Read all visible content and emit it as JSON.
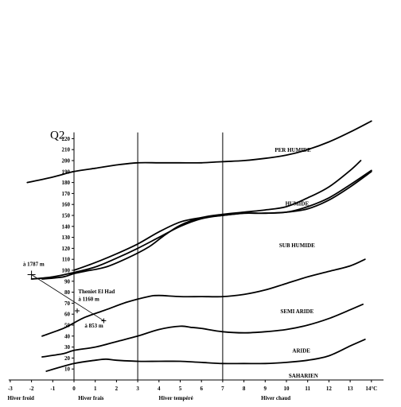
{
  "chart_data": {
    "type": "line",
    "ylabel": "Q2",
    "xlim": [
      -3,
      14
    ],
    "ylim": [
      0,
      230
    ],
    "x_ticks": [
      "-3",
      "-2",
      "-1",
      "0",
      "1",
      "2",
      "3",
      "4",
      "5",
      "6",
      "7",
      "8",
      "9",
      "10",
      "11",
      "12",
      "13",
      "14°C"
    ],
    "y_ticks": [
      10,
      20,
      30,
      40,
      50,
      60,
      70,
      80,
      90,
      100,
      110,
      120,
      130,
      140,
      150,
      160,
      170,
      180,
      190,
      200,
      210,
      220
    ],
    "vertical_lines": [
      0,
      3,
      7
    ],
    "seasons": [
      {
        "label": "Hiver froid",
        "x": -2.5
      },
      {
        "label": "Hiver frais",
        "x": 0.8
      },
      {
        "label": "Hiver tempéré",
        "x": 4.8
      },
      {
        "label": "Hiver chaud",
        "x": 9.5
      }
    ],
    "zones": [
      {
        "label": "PER HUMIDE",
        "x": 10.3,
        "y": 208
      },
      {
        "label": "HUMIDE",
        "x": 10.5,
        "y": 159
      },
      {
        "label": "SUB HUMIDE",
        "x": 10.5,
        "y": 121
      },
      {
        "label": "SEMI ARIDE",
        "x": 10.5,
        "y": 61
      },
      {
        "label": "ARIDE",
        "x": 10.7,
        "y": 25
      },
      {
        "label": "SAHARIEN",
        "x": 10.8,
        "y": 2
      }
    ],
    "series": [
      {
        "x": [
          -2.2,
          -1,
          0,
          1,
          2,
          3,
          4,
          5,
          6,
          7,
          8,
          9,
          10,
          11,
          12,
          13,
          14
        ],
        "y": [
          180,
          185,
          190,
          193,
          196,
          198,
          198,
          198,
          198,
          199,
          200,
          202,
          205,
          210,
          217,
          226,
          236
        ]
      },
      {
        "x": [
          0,
          1,
          2,
          3,
          4,
          5,
          6,
          7,
          8,
          9,
          10,
          11,
          12,
          13,
          14
        ],
        "y": [
          100,
          107,
          115,
          124,
          135,
          144,
          148,
          150,
          152,
          152,
          153,
          156,
          164,
          176,
          190
        ]
      },
      {
        "x": [
          -2,
          -1,
          0,
          1,
          2,
          3,
          4,
          5,
          6,
          7,
          8,
          9,
          10,
          11,
          12,
          13,
          14
        ],
        "y": [
          92,
          94,
          98,
          103,
          111,
          120,
          130,
          140,
          147,
          150,
          152,
          152,
          153,
          158,
          166,
          178,
          191
        ]
      },
      {
        "x": [
          -1.5,
          -0.5,
          0,
          0.5,
          1.5,
          2.5,
          3.5,
          4.2,
          5,
          6,
          7,
          8,
          9,
          10,
          11,
          12,
          13,
          13.5
        ],
        "y": [
          92,
          94,
          97,
          99,
          103,
          111,
          121,
          131,
          141,
          148,
          151,
          153,
          155,
          158,
          166,
          176,
          191,
          200
        ]
      },
      {
        "x": [
          -1.5,
          -0.5,
          0,
          0.5,
          1.5,
          2.5,
          3.5,
          4,
          5,
          6,
          7,
          8,
          9,
          10,
          11,
          12,
          13,
          13.7
        ],
        "y": [
          40,
          47,
          52,
          57,
          64,
          71,
          76,
          77,
          76,
          76,
          76,
          78,
          82,
          88,
          94,
          99,
          104,
          110
        ]
      },
      {
        "x": [
          -1.5,
          -0.5,
          0,
          1,
          2,
          3,
          4,
          5,
          5.5,
          6,
          7,
          8,
          9,
          10,
          11,
          12,
          13,
          13.6
        ],
        "y": [
          21,
          24,
          27,
          30,
          35,
          40,
          46,
          49,
          48,
          47,
          44,
          43,
          44,
          46,
          50,
          56,
          64,
          69
        ]
      },
      {
        "x": [
          -1.3,
          0,
          1,
          1.5,
          2,
          3,
          4,
          5,
          6,
          7,
          8,
          9,
          10,
          11,
          12,
          13,
          13.7
        ],
        "y": [
          8,
          15,
          18,
          19,
          18,
          17,
          17,
          17,
          16,
          15,
          15,
          15,
          16,
          18,
          22,
          31,
          37
        ]
      }
    ],
    "annotations": [
      {
        "label": "à 1787 m",
        "x": -2.4,
        "y": 104
      },
      {
        "label": "Theniet El Had",
        "x": 0.2,
        "y": 79
      },
      {
        "label": "à 1160 m",
        "x": 0.2,
        "y": 72
      },
      {
        "label": "à 853 m",
        "x": 0.5,
        "y": 48
      }
    ],
    "markers": [
      {
        "x": -2.0,
        "y": 96
      },
      {
        "x": 0.15,
        "y": 63
      },
      {
        "x": 1.4,
        "y": 54
      }
    ]
  }
}
